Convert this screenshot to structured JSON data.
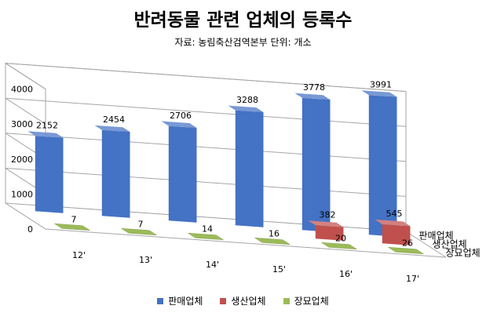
{
  "chart_data": {
    "type": "bar",
    "title": "반려동물 관련 업체의 등록수",
    "subtitle": "자료: 농림축산검역본부   단위: 개소",
    "categories": [
      "12'",
      "13'",
      "14'",
      "15'",
      "16'",
      "17'"
    ],
    "series": [
      {
        "name": "판매업체",
        "values": [
          2152,
          2454,
          2706,
          3288,
          3778,
          3991
        ],
        "color": "#4472C4"
      },
      {
        "name": "생산업체",
        "values": [
          0,
          0,
          0,
          0,
          382,
          545
        ],
        "color": "#C0504D"
      },
      {
        "name": "장묘업체",
        "values": [
          7,
          7,
          14,
          16,
          20,
          26
        ],
        "color": "#9BBB59"
      }
    ],
    "data_labels": {
      "판매업체": [
        "2152",
        "2454",
        "2706",
        "3288",
        "3778",
        "3991"
      ],
      "생산업체": [
        "",
        "",
        "",
        "",
        "382",
        "545"
      ],
      "장묘업체": [
        "7",
        "7",
        "14",
        "16",
        "20",
        "26"
      ]
    },
    "y_ticks": [
      "0",
      "1000",
      "2000",
      "3000",
      "4000"
    ],
    "ylim": [
      0,
      4000
    ],
    "grid": true,
    "legend_position": "bottom",
    "style": "3d-column"
  }
}
